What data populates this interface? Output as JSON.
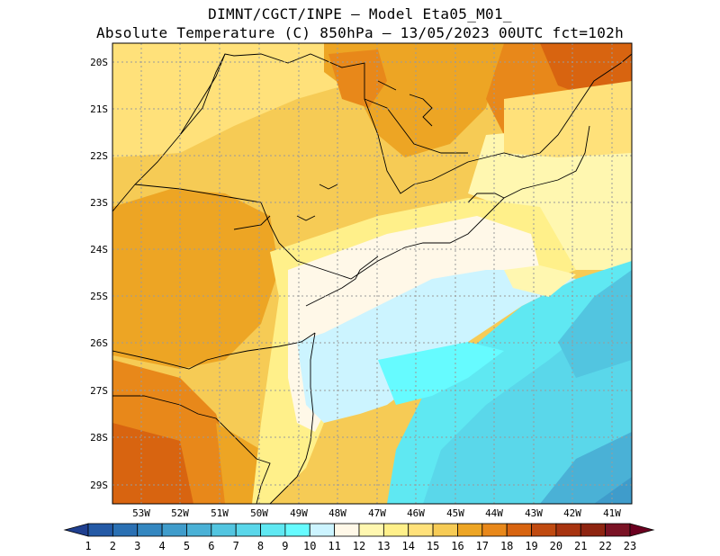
{
  "title": {
    "line1": "DIMNT/CGCT/INPE –  Model Eta05_M01_",
    "line2": "Absolute Temperature (C) 850hPa –  13/05/2023 00UTC fct=102h"
  },
  "axes": {
    "lat_labels": [
      "20S",
      "21S",
      "22S",
      "23S",
      "24S",
      "25S",
      "26S",
      "27S",
      "28S",
      "29S"
    ],
    "lon_labels": [
      "53W",
      "52W",
      "51W",
      "50W",
      "49W",
      "48W",
      "47W",
      "46W",
      "45W",
      "44W",
      "43W",
      "42W",
      "41W"
    ]
  },
  "colorbar": {
    "labels": [
      "1",
      "2",
      "3",
      "4",
      "5",
      "6",
      "7",
      "8",
      "9",
      "10",
      "11",
      "12",
      "13",
      "14",
      "15",
      "16",
      "17",
      "18",
      "19",
      "20",
      "21",
      "22",
      "23"
    ],
    "colors": [
      "#1f3f8f",
      "#245aa6",
      "#2a70b3",
      "#3487c0",
      "#3f9ccb",
      "#4ab1d6",
      "#52c5e0",
      "#5ad7ea",
      "#5fe8f2",
      "#66fbff",
      "#ccf4ff",
      "#fff8e8",
      "#fff7b0",
      "#fff08a",
      "#ffe17a",
      "#f6cb55",
      "#eda524",
      "#e8881a",
      "#d86410",
      "#c04a10",
      "#a83410",
      "#8e2410",
      "#7a1224",
      "#6b0020"
    ]
  },
  "chart_data": {
    "type": "heatmap",
    "variable": "Absolute Temperature (C) 850hPa",
    "date": "13/05/2023 00UTC",
    "forecast": "fct=102h",
    "lon_range": [
      -53.7,
      -40.5
    ],
    "lat_range": [
      -29.4,
      -19.8
    ],
    "levels": [
      1,
      2,
      3,
      4,
      5,
      6,
      7,
      8,
      9,
      10,
      11,
      12,
      13,
      14,
      15,
      16,
      17,
      18,
      19,
      20,
      21,
      22,
      23
    ],
    "regions": [
      {
        "area": "ocean east of 46W, south of 25S",
        "value_range": [
          7,
          9
        ]
      },
      {
        "area": "coastal band 47W-49W",
        "value_range": [
          10,
          12
        ]
      },
      {
        "area": "northern interior 20S-22S",
        "value_range": [
          15,
          17
        ]
      },
      {
        "area": "southwest interior near 28S-29S, 53W",
        "value_range": [
          17,
          19
        ]
      }
    ]
  }
}
